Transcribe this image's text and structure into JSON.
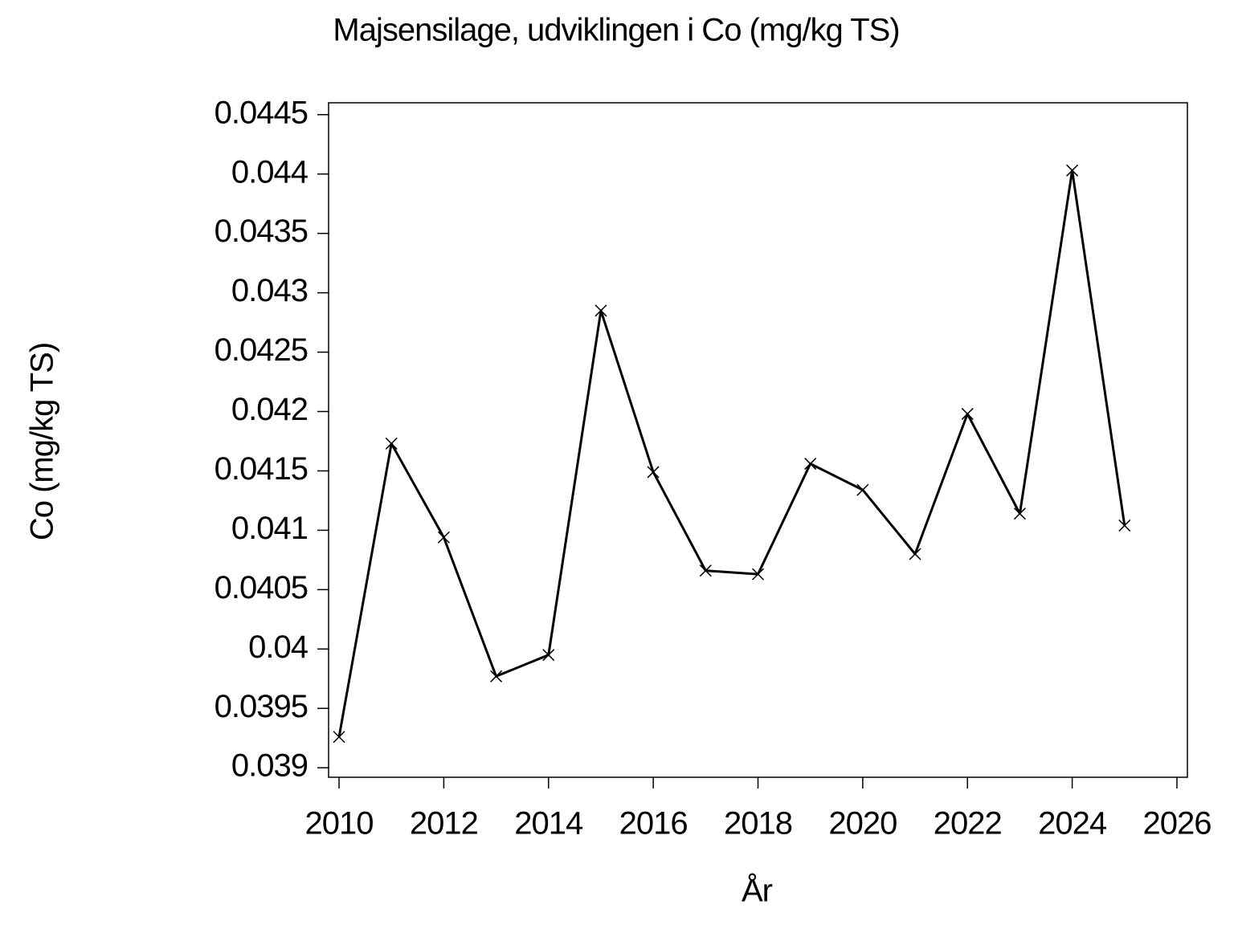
{
  "chart_data": {
    "type": "line",
    "title": "Majsensilage, udviklingen i Co (mg/kg TS)",
    "x_label": "År",
    "y_label": "Co (mg/kg TS)",
    "x": [
      2010,
      2011,
      2012,
      2013,
      2014,
      2015,
      2016,
      2017,
      2018,
      2019,
      2020,
      2021,
      2022,
      2023,
      2024,
      2025
    ],
    "values": [
      0.03926,
      0.04173,
      0.04094,
      0.03977,
      0.03995,
      0.04285,
      0.04149,
      0.04066,
      0.04063,
      0.04156,
      0.04134,
      0.0408,
      0.04198,
      0.04114,
      0.04403,
      0.04104
    ],
    "color": "#000000",
    "marker": "x",
    "xlim": [
      2009.8,
      2026.2
    ],
    "xticks": [
      2010,
      2012,
      2014,
      2016,
      2018,
      2020,
      2022,
      2024,
      2026
    ],
    "ylim": [
      0.03892,
      0.0446
    ],
    "yticks": [
      0.039,
      0.0395,
      0.04,
      0.0405,
      0.041,
      0.0415,
      0.042,
      0.0425,
      0.043,
      0.0435,
      0.044,
      0.0445
    ],
    "grid": false
  }
}
